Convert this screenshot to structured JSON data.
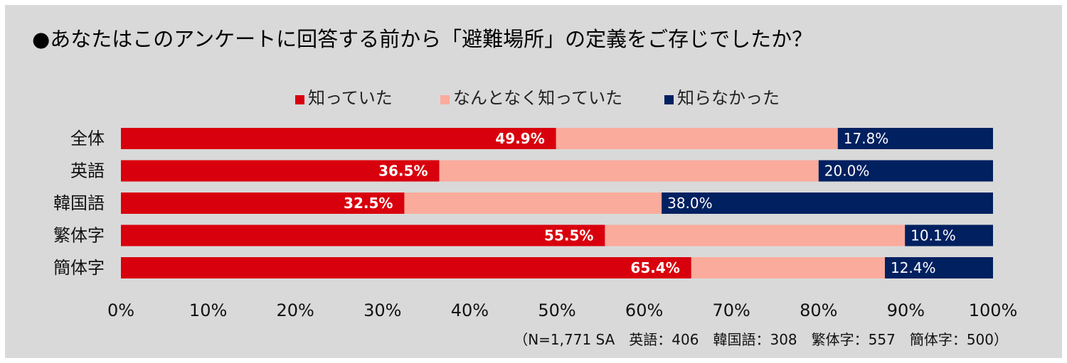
{
  "chart_data": {
    "type": "bar",
    "orientation": "horizontal",
    "stacked": true,
    "title": "●あなたはこのアンケートに回答する前から「避難場所」の定義をご存じでしたか？",
    "categories": [
      "全体",
      "英語",
      "韓国語",
      "繁体字",
      "簡体字"
    ],
    "series": [
      {
        "name": "知っていた",
        "color": "#d9000d",
        "values": [
          49.9,
          36.5,
          32.5,
          55.5,
          65.4
        ],
        "labels": [
          "49.9%",
          "36.5%",
          "32.5%",
          "55.5%",
          "65.4%"
        ]
      },
      {
        "name": "なんとなく知っていた",
        "color": "#fbab9c",
        "values": [
          32.3,
          43.5,
          29.5,
          34.4,
          22.2
        ],
        "labels": []
      },
      {
        "name": "知らなかった",
        "color": "#002060",
        "values": [
          17.8,
          20.0,
          38.0,
          10.1,
          12.4
        ],
        "labels": [
          "17.8%",
          "20.0%",
          "38.0%",
          "10.1%",
          "12.4%"
        ]
      }
    ],
    "xlim": [
      0,
      100
    ],
    "xticks": [
      "0%",
      "10%",
      "20%",
      "30%",
      "40%",
      "50%",
      "60%",
      "70%",
      "80%",
      "90%",
      "100%"
    ],
    "legend_position": "top",
    "grid": false,
    "note": "（N=1,771 SA　英語：406　韓国語：308　繁体字：557　簡体字：500）"
  }
}
